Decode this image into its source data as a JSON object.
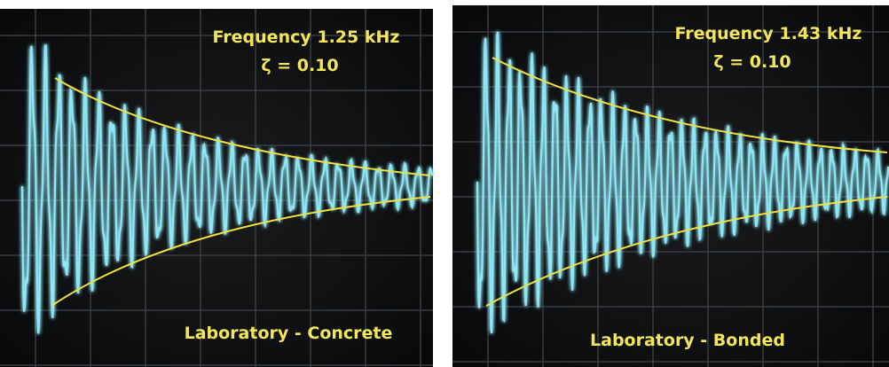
{
  "panels": [
    {
      "frequency": "Frequency  1.25 kHz",
      "damping": "ζ = 0.10",
      "caption": "Laboratory - Concrete"
    },
    {
      "frequency": "Frequency  1.43 kHz",
      "damping": "ζ = 0.10",
      "caption": "Laboratory - Bonded"
    }
  ]
}
